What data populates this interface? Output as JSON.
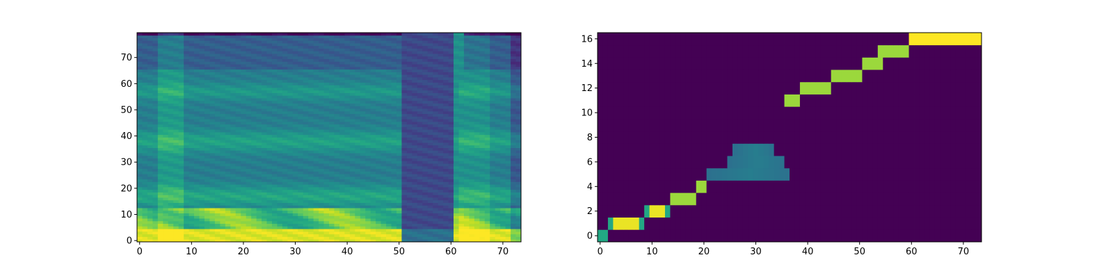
{
  "chart_data": [
    {
      "type": "heatmap",
      "colormap": "viridis",
      "xlim": [
        -0.5,
        73.5
      ],
      "ylim": [
        -0.5,
        79.5
      ],
      "x_ticks": [
        0,
        10,
        20,
        30,
        40,
        50,
        60,
        70
      ],
      "y_ticks": [
        0,
        10,
        20,
        30,
        40,
        50,
        60,
        70
      ],
      "x_tick_labels": [
        "0",
        "10",
        "20",
        "30",
        "40",
        "50",
        "60",
        "70"
      ],
      "y_tick_labels": [
        "0",
        "10",
        "20",
        "30",
        "40",
        "50",
        "60",
        "70"
      ],
      "shape": [
        80,
        74
      ],
      "description_of_values": "normalized intensity 0-1 (mel spectrogram-like): bright bands near rows 0-12, formants around rows 15-20, 35-40, 55-60; dark vertical band at columns 51-60 and near column 61-62 bright stripe"
    },
    {
      "type": "heatmap",
      "colormap": "viridis",
      "xlim": [
        -0.5,
        73.5
      ],
      "ylim": [
        -0.5,
        16.5
      ],
      "x_ticks": [
        0,
        10,
        20,
        30,
        40,
        50,
        60,
        70
      ],
      "y_ticks": [
        0,
        2,
        4,
        6,
        8,
        10,
        12,
        14,
        16
      ],
      "x_tick_labels": [
        "0",
        "10",
        "20",
        "30",
        "40",
        "50",
        "60",
        "70"
      ],
      "y_tick_labels": [
        "0",
        "2",
        "4",
        "6",
        "8",
        "10",
        "12",
        "14",
        "16"
      ],
      "shape": [
        17,
        74
      ],
      "alignment_path": [
        {
          "row": 0,
          "cols": [
            0,
            1
          ]
        },
        {
          "row": 1,
          "cols": [
            2,
            3,
            4,
            5,
            6,
            7,
            8
          ]
        },
        {
          "row": 2,
          "cols": [
            9,
            10,
            11,
            12,
            13
          ]
        },
        {
          "row": 3,
          "cols": [
            14,
            15,
            16,
            17,
            18
          ]
        },
        {
          "row": 4,
          "cols": [
            19,
            20
          ]
        },
        {
          "row": 5,
          "cols": [
            21,
            22,
            23,
            24,
            25,
            26,
            27,
            28,
            29,
            30,
            31,
            32,
            33,
            34,
            35,
            36
          ]
        },
        {
          "row": 6,
          "cols": [
            25,
            26,
            27,
            28,
            29,
            30,
            31,
            32,
            33,
            34,
            35
          ]
        },
        {
          "row": 7,
          "cols": [
            26,
            27,
            28,
            29,
            30,
            31,
            32,
            33
          ]
        },
        {
          "row": 11,
          "cols": [
            36,
            37,
            38
          ]
        },
        {
          "row": 12,
          "cols": [
            39,
            40,
            41,
            42,
            43,
            44
          ]
        },
        {
          "row": 13,
          "cols": [
            45,
            46,
            47,
            48,
            49,
            50
          ]
        },
        {
          "row": 14,
          "cols": [
            51,
            52,
            53,
            54
          ]
        },
        {
          "row": 15,
          "cols": [
            54,
            55,
            56,
            57,
            58,
            59
          ]
        },
        {
          "row": 16,
          "cols": [
            60,
            61,
            62,
            63,
            64,
            65,
            66,
            67,
            68,
            69,
            70,
            71,
            72,
            73
          ]
        }
      ]
    }
  ]
}
